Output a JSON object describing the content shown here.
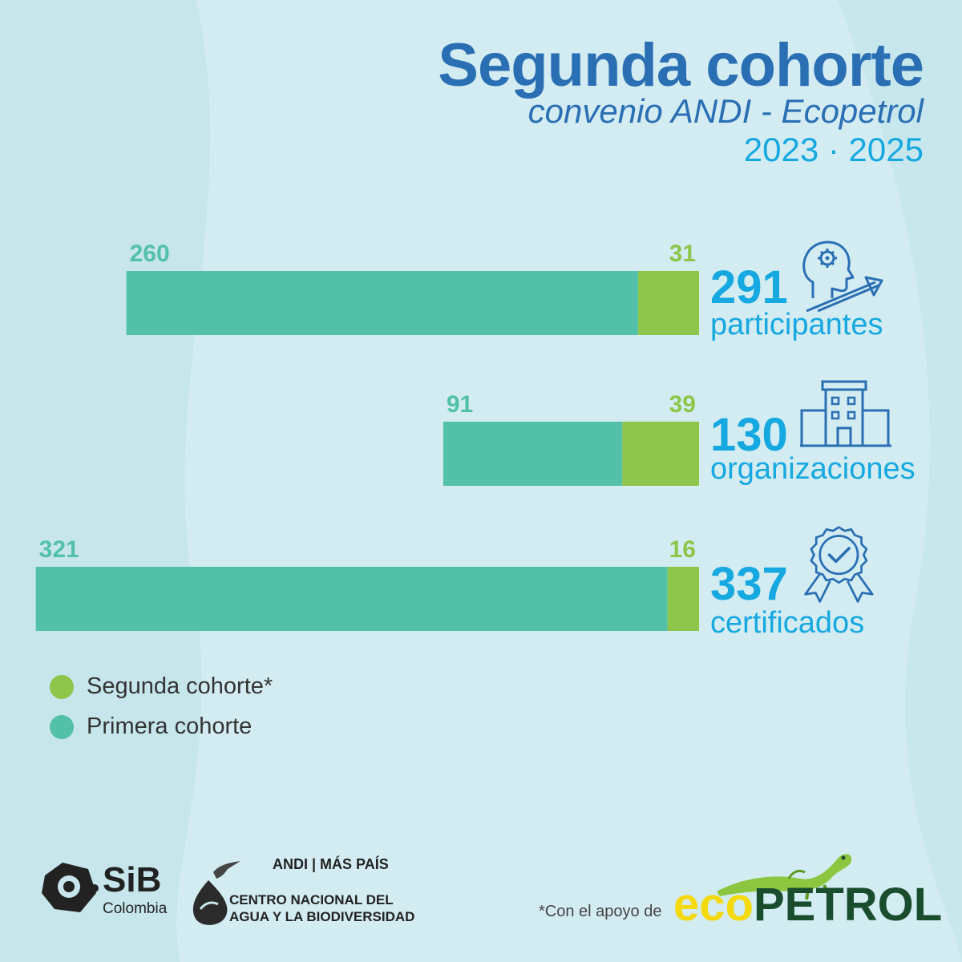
{
  "header": {
    "title": "Segunda cohorte",
    "subtitle": "convenio ANDI - Ecopetrol",
    "years": "2023 · 2025"
  },
  "colors": {
    "primera": "#53c0a8",
    "segunda": "#8dc64a",
    "accent_blue": "#16a8e0",
    "title_blue": "#2a6fb4"
  },
  "chart_data": {
    "type": "bar",
    "orientation": "horizontal",
    "stacked": true,
    "alignment": "right",
    "categories": [
      "participantes",
      "organizaciones",
      "certificados"
    ],
    "series": [
      {
        "name": "Primera cohorte",
        "values": [
          260,
          91,
          321
        ]
      },
      {
        "name": "Segunda cohorte*",
        "values": [
          31,
          39,
          16
        ]
      }
    ],
    "totals": [
      291,
      130,
      337
    ],
    "legend_position": "bottom-left",
    "grid": false
  },
  "stats": [
    {
      "value": "291",
      "label": "participantes",
      "icon": "head-gear-growth-icon"
    },
    {
      "value": "130",
      "label": "organizaciones",
      "icon": "building-icon"
    },
    {
      "value": "337",
      "label": "certificados",
      "icon": "certificate-badge-icon"
    }
  ],
  "legend": [
    {
      "label": "Segunda cohorte*",
      "color": "#8dc64a"
    },
    {
      "label": "Primera cohorte",
      "color": "#53c0a8"
    }
  ],
  "footer": {
    "sib": "SiB",
    "sib_sub": "Colombia",
    "andi": "ANDI | MÁS PAÍS",
    "cnab_line1": "CENTRO NACIONAL DEL",
    "cnab_line2": "AGUA Y LA BIODIVERSIDAD",
    "support": "*Con el apoyo de",
    "eco_part1": "eco",
    "eco_part2": "PETROL"
  }
}
